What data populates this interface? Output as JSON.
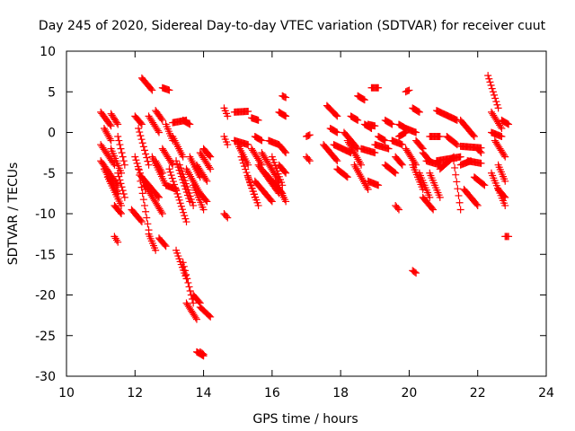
{
  "chart_data": {
    "type": "scatter",
    "title": "Day 245 of 2020, Sidereal Day-to-day VTEC variation (SDTVAR) for receiver cuut",
    "xlabel": "GPS time / hours",
    "ylabel": "SDTVAR / TECUs",
    "xlim": [
      10,
      24
    ],
    "ylim": [
      -30,
      10
    ],
    "xticks": [
      10,
      12,
      14,
      16,
      18,
      20,
      22,
      24
    ],
    "yticks": [
      -30,
      -25,
      -20,
      -15,
      -10,
      -5,
      0,
      5,
      10
    ],
    "xtick_labels": [
      "10",
      "12",
      "14",
      "16",
      "18",
      "20",
      "22",
      "24"
    ],
    "ytick_labels": [
      "-30",
      "-25",
      "-20",
      "-15",
      "-10",
      "-5",
      "0",
      "5",
      "10"
    ],
    "marker": "+",
    "color": "#ff0000",
    "grid": false,
    "legend": "none",
    "series": [
      {
        "name": "tracks",
        "tracks": [
          [
            11.0,
            11.3,
            2.5,
            0.8
          ],
          [
            11.0,
            11.4,
            -1.5,
            -4.0
          ],
          [
            11.0,
            11.5,
            -3.5,
            -6.5
          ],
          [
            11.1,
            11.5,
            -4.5,
            -7.5
          ],
          [
            11.2,
            11.6,
            -5.5,
            -9.0
          ],
          [
            11.3,
            11.6,
            -2.0,
            -5.0
          ],
          [
            11.3,
            11.5,
            2.3,
            1.0
          ],
          [
            11.4,
            11.6,
            -9.0,
            -10.0
          ],
          [
            11.4,
            11.5,
            -12.8,
            -13.5
          ],
          [
            11.5,
            11.7,
            -0.5,
            -4.0
          ],
          [
            11.5,
            11.7,
            -5.0,
            -8.0
          ],
          [
            11.1,
            11.3,
            0.5,
            -1.0
          ],
          [
            11.9,
            12.2,
            -9.5,
            -11.0
          ],
          [
            12.0,
            12.3,
            -3.0,
            -7.0
          ],
          [
            12.0,
            12.2,
            2.0,
            1.0
          ],
          [
            12.1,
            12.4,
            -4.5,
            -12.0
          ],
          [
            12.1,
            12.4,
            0.5,
            -4.0
          ],
          [
            12.2,
            12.5,
            6.7,
            5.2
          ],
          [
            12.2,
            12.7,
            -5.5,
            -8.0
          ],
          [
            12.3,
            12.8,
            -6.5,
            -10.0
          ],
          [
            12.4,
            12.7,
            2.0,
            0.0
          ],
          [
            12.4,
            12.6,
            -12.5,
            -14.5
          ],
          [
            12.5,
            12.9,
            -3.0,
            -6.5
          ],
          [
            12.6,
            12.8,
            2.7,
            1.5
          ],
          [
            12.6,
            12.8,
            -3.5,
            -5.0
          ],
          [
            12.7,
            12.9,
            -13.0,
            -14.0
          ],
          [
            12.8,
            13.0,
            5.5,
            5.2
          ],
          [
            12.8,
            13.1,
            -2.0,
            -4.0
          ],
          [
            12.9,
            13.2,
            -6.5,
            -7.0
          ],
          [
            12.9,
            13.1,
            1.0,
            -1.0
          ],
          [
            13.0,
            13.5,
            -4.5,
            -11.0
          ],
          [
            13.1,
            13.4,
            -0.5,
            -3.0
          ],
          [
            13.1,
            13.5,
            1.2,
            1.5
          ],
          [
            13.2,
            13.6,
            -3.5,
            -8.5
          ],
          [
            13.2,
            13.5,
            -14.5,
            -18.0
          ],
          [
            13.3,
            13.7,
            -4.0,
            -9.0
          ],
          [
            13.4,
            13.7,
            -16.0,
            -21.0
          ],
          [
            13.4,
            13.6,
            1.5,
            1.0
          ],
          [
            13.5,
            13.9,
            -4.5,
            -7.5
          ],
          [
            13.5,
            13.8,
            -21.0,
            -23.0
          ],
          [
            13.6,
            13.9,
            -3.0,
            -5.5
          ],
          [
            13.7,
            13.9,
            -20.0,
            -21.0
          ],
          [
            13.7,
            14.0,
            -6.5,
            -9.5
          ],
          [
            13.8,
            14.1,
            -4.0,
            -6.0
          ],
          [
            13.9,
            14.2,
            -21.5,
            -22.7
          ],
          [
            13.9,
            14.2,
            -2.5,
            -4.5
          ],
          [
            13.9,
            14.1,
            -7.5,
            -8.5
          ],
          [
            14.0,
            14.2,
            -2.0,
            -3.0
          ],
          [
            13.8,
            14.0,
            -27.0,
            -27.5
          ],
          [
            13.9,
            14.0,
            -27.0,
            -27.3
          ],
          [
            14.6,
            14.7,
            3.0,
            2.0
          ],
          [
            14.6,
            14.7,
            -0.5,
            -1.5
          ],
          [
            14.6,
            14.7,
            -10.0,
            -10.5
          ],
          [
            14.9,
            15.3,
            2.5,
            2.6
          ],
          [
            14.9,
            15.3,
            -1.0,
            -1.5
          ],
          [
            15.0,
            15.3,
            -1.5,
            -4.0
          ],
          [
            15.1,
            15.5,
            -3.0,
            -8.0
          ],
          [
            15.3,
            15.6,
            -5.5,
            -9.0
          ],
          [
            15.4,
            15.7,
            -2.0,
            -4.0
          ],
          [
            15.4,
            15.6,
            1.8,
            1.5
          ],
          [
            15.5,
            15.7,
            -0.5,
            -1.0
          ],
          [
            15.5,
            16.0,
            -6.0,
            -8.5
          ],
          [
            15.6,
            16.2,
            -4.0,
            -7.5
          ],
          [
            15.7,
            16.2,
            -2.5,
            -6.0
          ],
          [
            15.8,
            16.3,
            -5.0,
            -7.5
          ],
          [
            15.9,
            16.2,
            -1.0,
            -1.5
          ],
          [
            16.0,
            16.3,
            -3.0,
            -6.5
          ],
          [
            16.1,
            16.4,
            -6.0,
            -8.5
          ],
          [
            16.2,
            16.4,
            2.5,
            2.0
          ],
          [
            16.2,
            16.4,
            -4.0,
            -5.0
          ],
          [
            16.3,
            16.4,
            4.5,
            4.3
          ],
          [
            16.2,
            16.4,
            -1.5,
            -2.5
          ],
          [
            17.0,
            17.1,
            -3.0,
            -3.5
          ],
          [
            17.0,
            17.1,
            -0.5,
            -0.3
          ],
          [
            17.5,
            17.9,
            -1.5,
            -3.5
          ],
          [
            17.6,
            17.9,
            3.3,
            2.0
          ],
          [
            17.7,
            17.9,
            0.5,
            0.0
          ],
          [
            17.8,
            18.3,
            -1.5,
            -2.5
          ],
          [
            17.9,
            18.2,
            -4.5,
            -5.5
          ],
          [
            18.1,
            18.5,
            0.0,
            -2.0
          ],
          [
            18.2,
            18.6,
            -1.0,
            -4.0
          ],
          [
            18.3,
            18.5,
            2.0,
            1.5
          ],
          [
            18.4,
            18.8,
            -4.0,
            -7.0
          ],
          [
            18.5,
            18.7,
            4.5,
            4.0
          ],
          [
            18.6,
            19.0,
            -2.0,
            -2.5
          ],
          [
            18.7,
            18.9,
            1.0,
            0.5
          ],
          [
            18.8,
            19.1,
            -6.0,
            -6.5
          ],
          [
            18.8,
            19.0,
            1.0,
            0.8
          ],
          [
            18.9,
            19.1,
            5.5,
            5.5
          ],
          [
            19.0,
            19.4,
            -1.5,
            -2.0
          ],
          [
            19.1,
            19.3,
            -0.5,
            -1.0
          ],
          [
            19.3,
            19.6,
            -4.0,
            -5.0
          ],
          [
            19.3,
            19.5,
            1.5,
            1.0
          ],
          [
            19.5,
            19.8,
            -1.0,
            -1.5
          ],
          [
            19.6,
            19.8,
            -3.0,
            -4.0
          ],
          [
            19.7,
            19.9,
            -0.5,
            0.0
          ],
          [
            19.7,
            19.9,
            1.0,
            0.5
          ],
          [
            19.6,
            19.7,
            -9.0,
            -9.5
          ],
          [
            19.9,
            20.0,
            5.0,
            5.2
          ],
          [
            19.9,
            20.2,
            -2.0,
            -4.0
          ],
          [
            19.9,
            20.2,
            0.5,
            0.0
          ],
          [
            20.1,
            20.4,
            -4.0,
            -7.0
          ],
          [
            20.1,
            20.3,
            3.0,
            2.5
          ],
          [
            20.2,
            20.4,
            -1.0,
            -2.0
          ],
          [
            20.1,
            20.2,
            -17.0,
            -17.3
          ],
          [
            20.3,
            20.6,
            -5.0,
            -8.0
          ],
          [
            20.4,
            20.7,
            -8.0,
            -9.5
          ],
          [
            20.4,
            20.6,
            -2.5,
            -3.5
          ],
          [
            20.5,
            20.9,
            -3.5,
            -4.0
          ],
          [
            20.6,
            20.9,
            -0.5,
            -0.5
          ],
          [
            20.6,
            20.9,
            -5.0,
            -8.0
          ],
          [
            20.8,
            21.4,
            2.7,
            1.5
          ],
          [
            20.8,
            21.5,
            -3.5,
            -3.0
          ],
          [
            20.9,
            21.3,
            -4.5,
            -3.0
          ],
          [
            21.1,
            21.4,
            -0.5,
            -1.5
          ],
          [
            21.3,
            21.5,
            -3.5,
            -9.5
          ],
          [
            21.5,
            21.9,
            1.5,
            -0.5
          ],
          [
            21.5,
            22.1,
            -1.7,
            -1.9
          ],
          [
            21.5,
            21.8,
            -4.0,
            -3.5
          ],
          [
            21.6,
            22.0,
            -7.0,
            -9.0
          ],
          [
            21.7,
            22.1,
            -3.5,
            -3.8
          ],
          [
            21.9,
            22.2,
            -5.5,
            -6.5
          ],
          [
            22.0,
            22.1,
            -2.0,
            -2.5
          ],
          [
            22.3,
            22.6,
            7.0,
            3.0
          ],
          [
            22.4,
            22.7,
            2.5,
            0.5
          ],
          [
            22.4,
            22.7,
            0.0,
            -0.5
          ],
          [
            22.4,
            22.8,
            -5.0,
            -9.0
          ],
          [
            22.5,
            22.8,
            -1.0,
            -3.0
          ],
          [
            22.6,
            22.8,
            -4.0,
            -6.0
          ],
          [
            22.7,
            22.9,
            1.5,
            1.0
          ],
          [
            22.6,
            22.8,
            -7.0,
            -8.0
          ],
          [
            22.8,
            22.9,
            -12.8,
            -12.8
          ]
        ]
      }
    ]
  }
}
